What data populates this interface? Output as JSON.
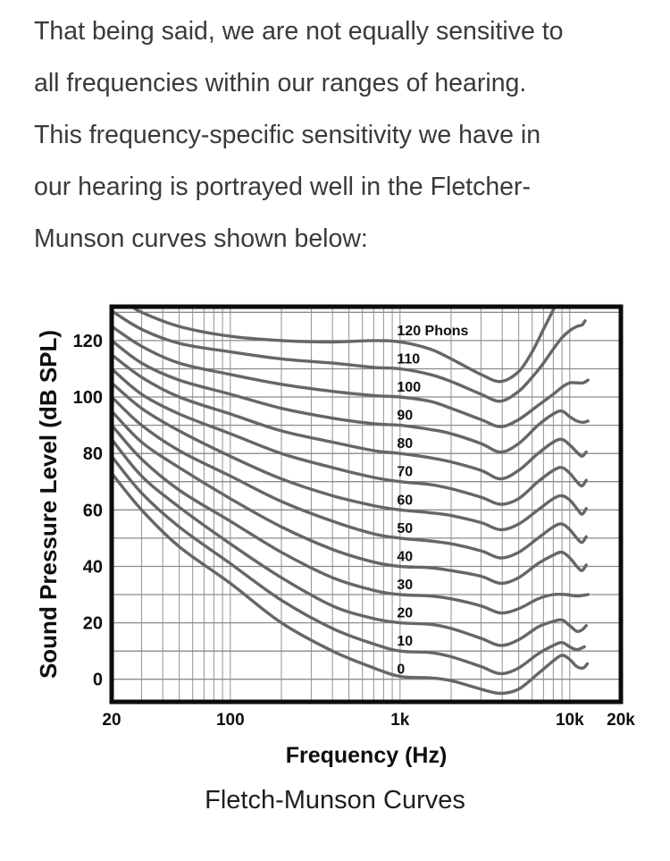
{
  "paragraph": {
    "lines": [
      "That being said, we are not equally sensitive to",
      "all frequencies within our ranges of hearing.",
      "This frequency-specific sensitivity we have in",
      "our hearing is portrayed well in the Fletcher-",
      "Munson curves shown below:"
    ]
  },
  "caption": "Fletch-Munson Curves",
  "chart_data": {
    "type": "line",
    "title": "",
    "xlabel": "Frequency (Hz)",
    "ylabel": "Sound Pressure Level (dB SPL)",
    "x_scale": "log",
    "xlim": [
      20,
      20000
    ],
    "ylim": [
      -8,
      132
    ],
    "grid": true,
    "legend_position": "inline-labels",
    "x_ticks": [
      {
        "value": 20,
        "label": "20"
      },
      {
        "value": 100,
        "label": "100"
      },
      {
        "value": 1000,
        "label": "1k"
      },
      {
        "value": 10000,
        "label": "10k"
      },
      {
        "value": 20000,
        "label": "20k"
      }
    ],
    "y_ticks": [
      0,
      20,
      40,
      60,
      80,
      100,
      120
    ],
    "x_gridlines": [
      20,
      30,
      40,
      50,
      60,
      70,
      80,
      90,
      100,
      200,
      300,
      400,
      500,
      600,
      700,
      800,
      900,
      1000,
      2000,
      3000,
      4000,
      5000,
      6000,
      7000,
      8000,
      9000,
      10000,
      20000
    ],
    "y_gridlines": [
      0,
      10,
      20,
      30,
      40,
      50,
      60,
      70,
      80,
      90,
      100,
      110,
      120,
      130
    ],
    "colors": {
      "curve": "#666666",
      "grid_vertical": "#9b9b9b",
      "grid_horizontal": "#8c8c8c",
      "border": "#0c0c0c",
      "text": "#0f0f0f"
    },
    "label_anchor_freq": 960,
    "series": [
      {
        "phon": 0,
        "label": "0",
        "points": [
          [
            20,
            73
          ],
          [
            30,
            60
          ],
          [
            50,
            47
          ],
          [
            100,
            34
          ],
          [
            200,
            20
          ],
          [
            400,
            10
          ],
          [
            700,
            4
          ],
          [
            1000,
            1
          ],
          [
            1500,
            0.5
          ],
          [
            2000,
            -0.5
          ],
          [
            3000,
            -3.5
          ],
          [
            3900,
            -5
          ],
          [
            5000,
            -3.5
          ],
          [
            6500,
            2
          ],
          [
            8000,
            6.5
          ],
          [
            9000,
            8.5
          ],
          [
            10000,
            7
          ],
          [
            11000,
            4.5
          ],
          [
            12000,
            4
          ],
          [
            12700,
            5.5
          ]
        ]
      },
      {
        "phon": 10,
        "label": "10",
        "points": [
          [
            20,
            79
          ],
          [
            30,
            66
          ],
          [
            50,
            54
          ],
          [
            100,
            41
          ],
          [
            200,
            28
          ],
          [
            400,
            18
          ],
          [
            700,
            12.5
          ],
          [
            1000,
            10
          ],
          [
            1500,
            9.5
          ],
          [
            2000,
            8
          ],
          [
            3000,
            4.5
          ],
          [
            3900,
            2
          ],
          [
            5000,
            4
          ],
          [
            6500,
            9
          ],
          [
            8000,
            12
          ],
          [
            9000,
            13
          ],
          [
            10000,
            11.5
          ],
          [
            11000,
            10.5
          ],
          [
            12200,
            11.5
          ]
        ]
      },
      {
        "phon": 20,
        "label": "20",
        "points": [
          [
            20,
            85
          ],
          [
            30,
            72
          ],
          [
            50,
            61
          ],
          [
            100,
            48
          ],
          [
            200,
            36
          ],
          [
            400,
            26
          ],
          [
            700,
            21.5
          ],
          [
            1000,
            20
          ],
          [
            1500,
            19.5
          ],
          [
            2000,
            18
          ],
          [
            3000,
            14.5
          ],
          [
            3900,
            12
          ],
          [
            5000,
            14
          ],
          [
            6500,
            18.5
          ],
          [
            8000,
            20.5
          ],
          [
            9000,
            21
          ],
          [
            10000,
            19
          ],
          [
            11000,
            17
          ],
          [
            11800,
            17.5
          ],
          [
            12500,
            19
          ]
        ]
      },
      {
        "phon": 30,
        "label": "30",
        "points": [
          [
            20,
            90
          ],
          [
            30,
            78
          ],
          [
            50,
            67
          ],
          [
            100,
            56
          ],
          [
            200,
            45
          ],
          [
            400,
            36
          ],
          [
            700,
            31.5
          ],
          [
            1000,
            30
          ],
          [
            1500,
            29.5
          ],
          [
            2000,
            28.5
          ],
          [
            3000,
            26
          ],
          [
            3900,
            23.5
          ],
          [
            5000,
            25
          ],
          [
            6500,
            28.5
          ],
          [
            8000,
            30
          ],
          [
            9500,
            30
          ],
          [
            11000,
            29.5
          ],
          [
            12800,
            30
          ]
        ]
      },
      {
        "phon": 40,
        "label": "40",
        "points": [
          [
            20,
            95
          ],
          [
            30,
            84
          ],
          [
            50,
            75
          ],
          [
            100,
            64
          ],
          [
            200,
            54
          ],
          [
            400,
            46
          ],
          [
            700,
            41.5
          ],
          [
            1000,
            40
          ],
          [
            1500,
            39.5
          ],
          [
            2000,
            38.5
          ],
          [
            3000,
            36.5
          ],
          [
            3900,
            34
          ],
          [
            5000,
            36
          ],
          [
            6500,
            41
          ],
          [
            8000,
            44
          ],
          [
            9000,
            45
          ],
          [
            10000,
            43
          ],
          [
            11000,
            40
          ],
          [
            11800,
            38.5
          ],
          [
            12500,
            40.5
          ]
        ]
      },
      {
        "phon": 50,
        "label": "50",
        "points": [
          [
            20,
            100
          ],
          [
            30,
            90
          ],
          [
            50,
            81
          ],
          [
            100,
            72
          ],
          [
            200,
            63
          ],
          [
            400,
            56
          ],
          [
            700,
            51.5
          ],
          [
            1000,
            50
          ],
          [
            1500,
            49
          ],
          [
            2000,
            48
          ],
          [
            3000,
            45.5
          ],
          [
            3900,
            43
          ],
          [
            5000,
            45
          ],
          [
            6500,
            50
          ],
          [
            8000,
            54
          ],
          [
            9000,
            55
          ],
          [
            10000,
            53
          ],
          [
            11000,
            50
          ],
          [
            11800,
            48.5
          ],
          [
            12500,
            50.5
          ]
        ]
      },
      {
        "phon": 60,
        "label": "60",
        "points": [
          [
            20,
            105
          ],
          [
            30,
            96
          ],
          [
            50,
            88
          ],
          [
            100,
            79
          ],
          [
            200,
            71
          ],
          [
            400,
            65
          ],
          [
            700,
            61.5
          ],
          [
            1000,
            60
          ],
          [
            1500,
            59
          ],
          [
            2000,
            58
          ],
          [
            3000,
            55.5
          ],
          [
            3900,
            53
          ],
          [
            5000,
            55
          ],
          [
            6500,
            60
          ],
          [
            8000,
            64
          ],
          [
            9000,
            65
          ],
          [
            10000,
            63.5
          ],
          [
            11000,
            60.5
          ],
          [
            11800,
            58.5
          ],
          [
            12500,
            60.5
          ]
        ]
      },
      {
        "phon": 70,
        "label": "70",
        "points": [
          [
            20,
            110
          ],
          [
            30,
            101
          ],
          [
            50,
            94
          ],
          [
            100,
            87
          ],
          [
            200,
            80
          ],
          [
            400,
            75
          ],
          [
            700,
            71.5
          ],
          [
            1000,
            70
          ],
          [
            1500,
            69
          ],
          [
            2000,
            67.5
          ],
          [
            3000,
            64.5
          ],
          [
            3900,
            62
          ],
          [
            5000,
            64
          ],
          [
            6500,
            70
          ],
          [
            8000,
            74
          ],
          [
            9000,
            75
          ],
          [
            10000,
            73
          ],
          [
            11000,
            70
          ],
          [
            11800,
            68.5
          ],
          [
            12500,
            70.5
          ]
        ]
      },
      {
        "phon": 80,
        "label": "80",
        "points": [
          [
            20,
            115
          ],
          [
            30,
            107
          ],
          [
            50,
            100
          ],
          [
            100,
            94
          ],
          [
            200,
            88
          ],
          [
            400,
            84
          ],
          [
            700,
            81
          ],
          [
            1000,
            80
          ],
          [
            1500,
            78.5
          ],
          [
            2000,
            77
          ],
          [
            3000,
            74
          ],
          [
            3900,
            71
          ],
          [
            5000,
            74
          ],
          [
            6500,
            80
          ],
          [
            8000,
            84
          ],
          [
            9000,
            85
          ],
          [
            10000,
            83
          ],
          [
            11000,
            80.5
          ],
          [
            11800,
            79
          ],
          [
            12500,
            80.5
          ]
        ]
      },
      {
        "phon": 90,
        "label": "90",
        "points": [
          [
            20,
            120
          ],
          [
            30,
            112
          ],
          [
            50,
            106
          ],
          [
            100,
            101
          ],
          [
            200,
            96
          ],
          [
            400,
            92.5
          ],
          [
            700,
            90.5
          ],
          [
            1000,
            90
          ],
          [
            1500,
            88.5
          ],
          [
            2000,
            87
          ],
          [
            3000,
            83.5
          ],
          [
            3900,
            80.5
          ],
          [
            5000,
            83.5
          ],
          [
            6500,
            90
          ],
          [
            8000,
            94
          ],
          [
            9000,
            95
          ],
          [
            10000,
            93
          ],
          [
            11000,
            91.5
          ],
          [
            12000,
            91
          ],
          [
            12800,
            91.5
          ]
        ]
      },
      {
        "phon": 100,
        "label": "100",
        "points": [
          [
            20,
            125
          ],
          [
            30,
            118
          ],
          [
            50,
            112
          ],
          [
            100,
            108
          ],
          [
            200,
            104.5
          ],
          [
            400,
            102
          ],
          [
            700,
            100.5
          ],
          [
            1000,
            100
          ],
          [
            1500,
            98.5
          ],
          [
            2000,
            96
          ],
          [
            3000,
            92
          ],
          [
            3900,
            89.5
          ],
          [
            5000,
            92
          ],
          [
            6500,
            97
          ],
          [
            8000,
            101
          ],
          [
            9000,
            103.5
          ],
          [
            10000,
            105
          ],
          [
            11000,
            105
          ],
          [
            12000,
            105
          ],
          [
            12800,
            106
          ]
        ]
      },
      {
        "phon": 110,
        "label": "110",
        "points": [
          [
            20,
            130.5
          ],
          [
            30,
            124
          ],
          [
            50,
            119
          ],
          [
            100,
            116
          ],
          [
            200,
            113.5
          ],
          [
            400,
            112
          ],
          [
            700,
            110.5
          ],
          [
            1000,
            110
          ],
          [
            1500,
            108
          ],
          [
            2000,
            105.5
          ],
          [
            3000,
            101
          ],
          [
            3900,
            98.5
          ],
          [
            5000,
            102
          ],
          [
            6000,
            107
          ],
          [
            7000,
            112
          ],
          [
            8000,
            117
          ],
          [
            9000,
            121
          ],
          [
            10000,
            123.5
          ],
          [
            11000,
            125
          ],
          [
            11800,
            125.5
          ],
          [
            12300,
            127
          ]
        ]
      },
      {
        "phon": 120,
        "label": "120 Phons",
        "points": [
          [
            20,
            136
          ],
          [
            25,
            133
          ],
          [
            30,
            130
          ],
          [
            50,
            125
          ],
          [
            100,
            121.5
          ],
          [
            200,
            120
          ],
          [
            400,
            119.5
          ],
          [
            700,
            120
          ],
          [
            1000,
            119.5
          ],
          [
            1500,
            117
          ],
          [
            2000,
            113.5
          ],
          [
            3000,
            108
          ],
          [
            3900,
            105.5
          ],
          [
            5000,
            109
          ],
          [
            6000,
            116
          ],
          [
            7000,
            124
          ],
          [
            8000,
            131
          ],
          [
            8600,
            136
          ]
        ]
      }
    ]
  }
}
